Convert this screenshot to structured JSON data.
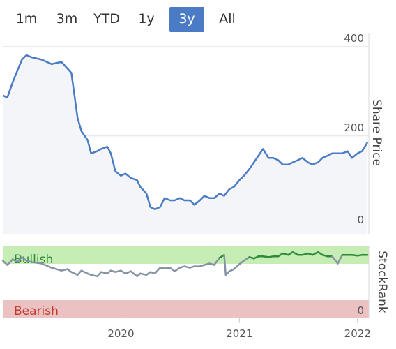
{
  "range_selector": {
    "buttons": [
      {
        "label": "1m",
        "active": false
      },
      {
        "label": "3m",
        "active": false
      },
      {
        "label": "YTD",
        "active": false
      },
      {
        "label": "1y",
        "active": false
      },
      {
        "label": "3y",
        "active": true
      },
      {
        "label": "All",
        "active": false
      }
    ]
  },
  "colors": {
    "price_line": "#4a7bc4",
    "price_fill": "#f3f5f9",
    "bullish_band": "#c6eeb4",
    "bearish_band": "#ebc1c1",
    "bullish_text": "#2e8b3a",
    "bearish_text": "#c0392b",
    "rank_line_grey": "#8592a3",
    "rank_line_green": "#2e8b3a",
    "active_button": "#4a7bc4"
  },
  "chart_data": [
    {
      "type": "line",
      "ylabel": "Share Price",
      "ylim": [
        -20,
        430
      ],
      "yticks": [
        "400",
        "200",
        "0"
      ],
      "x_ticks": [
        "2020",
        "2021",
        "2022"
      ],
      "x_range": [
        "2019-01",
        "2022-02"
      ],
      "series": [
        {
          "values": [
            [
              "2019-01",
              290
            ],
            [
              "2019-01-15",
              285
            ],
            [
              "2019-02",
              320
            ],
            [
              "2019-02-15",
              345
            ],
            [
              "2019-03",
              370
            ],
            [
              "2019-03-15",
              380
            ],
            [
              "2019-04",
              375
            ],
            [
              "2019-05",
              370
            ],
            [
              "2019-06",
              360
            ],
            [
              "2019-07",
              365
            ],
            [
              "2019-07-20",
              350
            ],
            [
              "2019-08",
              340
            ],
            [
              "2019-08-20",
              240
            ],
            [
              "2019-09",
              210
            ],
            [
              "2019-09-20",
              190
            ],
            [
              "2019-10",
              160
            ],
            [
              "2019-10-20",
              165
            ],
            [
              "2019-11",
              170
            ],
            [
              "2019-11-20",
              175
            ],
            [
              "2019-12",
              160
            ],
            [
              "2019-12-15",
              120
            ],
            [
              "2020-01",
              110
            ],
            [
              "2020-01-15",
              115
            ],
            [
              "2020-02",
              105
            ],
            [
              "2020-02-20",
              100
            ],
            [
              "2020-03",
              85
            ],
            [
              "2020-03-20",
              70
            ],
            [
              "2020-04",
              40
            ],
            [
              "2020-04-15",
              35
            ],
            [
              "2020-05",
              40
            ],
            [
              "2020-05-15",
              60
            ],
            [
              "2020-06",
              55
            ],
            [
              "2020-06-15",
              55
            ],
            [
              "2020-07",
              60
            ],
            [
              "2020-07-15",
              55
            ],
            [
              "2020-08",
              55
            ],
            [
              "2020-08-15",
              45
            ],
            [
              "2020-09",
              55
            ],
            [
              "2020-09-15",
              65
            ],
            [
              "2020-10",
              60
            ],
            [
              "2020-10-15",
              60
            ],
            [
              "2020-11",
              70
            ],
            [
              "2020-11-15",
              65
            ],
            [
              "2020-12",
              80
            ],
            [
              "2020-12-15",
              85
            ],
            [
              "2021-01",
              100
            ],
            [
              "2021-01-15",
              110
            ],
            [
              "2021-02",
              125
            ],
            [
              "2021-02-15",
              140
            ],
            [
              "2021-03",
              155
            ],
            [
              "2021-03-15",
              170
            ],
            [
              "2021-04",
              150
            ],
            [
              "2021-04-15",
              150
            ],
            [
              "2021-05",
              145
            ],
            [
              "2021-05-15",
              135
            ],
            [
              "2021-06",
              135
            ],
            [
              "2021-06-15",
              140
            ],
            [
              "2021-07",
              145
            ],
            [
              "2021-07-15",
              150
            ],
            [
              "2021-08",
              140
            ],
            [
              "2021-08-15",
              135
            ],
            [
              "2021-09",
              140
            ],
            [
              "2021-09-15",
              150
            ],
            [
              "2021-10",
              155
            ],
            [
              "2021-10-15",
              160
            ],
            [
              "2021-11",
              160
            ],
            [
              "2021-11-15",
              160
            ],
            [
              "2021-12",
              165
            ],
            [
              "2021-12-15",
              150
            ],
            [
              "2022-01",
              160
            ],
            [
              "2022-01-15",
              165
            ],
            [
              "2022-02",
              185
            ]
          ]
        }
      ]
    },
    {
      "type": "line",
      "ylabel": "StockRank",
      "yticks": [
        "0"
      ],
      "bands": [
        "Bullish",
        "Bearish"
      ],
      "ylim": [
        0,
        100
      ],
      "series": [
        {
          "values": [
            [
              "2019-01",
              80
            ],
            [
              "2019-01-15",
              74
            ],
            [
              "2019-02",
              82
            ],
            [
              "2019-02-15",
              78
            ],
            [
              "2019-03",
              85
            ],
            [
              "2019-03-15",
              80
            ],
            [
              "2019-04",
              78
            ],
            [
              "2019-05",
              76
            ],
            [
              "2019-06",
              70
            ],
            [
              "2019-07",
              66
            ],
            [
              "2019-07-20",
              68
            ],
            [
              "2019-08",
              64
            ],
            [
              "2019-08-20",
              60
            ],
            [
              "2019-09",
              66
            ],
            [
              "2019-09-20",
              62
            ],
            [
              "2019-10",
              60
            ],
            [
              "2019-10-20",
              58
            ],
            [
              "2019-11",
              64
            ],
            [
              "2019-11-20",
              62
            ],
            [
              "2019-12",
              66
            ],
            [
              "2019-12-15",
              64
            ],
            [
              "2020-01",
              66
            ],
            [
              "2020-01-15",
              62
            ],
            [
              "2020-02",
              65
            ],
            [
              "2020-02-20",
              58
            ],
            [
              "2020-03",
              62
            ],
            [
              "2020-03-20",
              60
            ],
            [
              "2020-04",
              64
            ],
            [
              "2020-04-15",
              62
            ],
            [
              "2020-05",
              70
            ],
            [
              "2020-05-15",
              69
            ],
            [
              "2020-06",
              70
            ],
            [
              "2020-06-15",
              65
            ],
            [
              "2020-07",
              70
            ],
            [
              "2020-07-15",
              72
            ],
            [
              "2020-08",
              70
            ],
            [
              "2020-08-15",
              72
            ],
            [
              "2020-09",
              72
            ],
            [
              "2020-09-15",
              74
            ],
            [
              "2020-10",
              76
            ],
            [
              "2020-10-15",
              74
            ],
            [
              "2020-11",
              84
            ],
            [
              "2020-11-15",
              88
            ],
            [
              "2020-11-20",
              60
            ],
            [
              "2020-12",
              65
            ],
            [
              "2020-12-15",
              68
            ],
            [
              "2021-01",
              75
            ],
            [
              "2021-01-15",
              80
            ],
            [
              "2021-02",
              85
            ],
            [
              "2021-02-15",
              83
            ],
            [
              "2021-03",
              86
            ],
            [
              "2021-03-15",
              86
            ],
            [
              "2021-04",
              85
            ],
            [
              "2021-04-15",
              86
            ],
            [
              "2021-05",
              86
            ],
            [
              "2021-05-15",
              90
            ],
            [
              "2021-06",
              88
            ],
            [
              "2021-06-15",
              92
            ],
            [
              "2021-07",
              88
            ],
            [
              "2021-07-15",
              88
            ],
            [
              "2021-08",
              90
            ],
            [
              "2021-08-15",
              88
            ],
            [
              "2021-09",
              92
            ],
            [
              "2021-09-15",
              88
            ],
            [
              "2021-10",
              86
            ],
            [
              "2021-10-15",
              86
            ],
            [
              "2021-11",
              76
            ],
            [
              "2021-11-15",
              88
            ],
            [
              "2021-12",
              88
            ],
            [
              "2021-12-15",
              88
            ],
            [
              "2022-01",
              87
            ],
            [
              "2022-01-15",
              88
            ],
            [
              "2022-02",
              88
            ]
          ]
        }
      ]
    }
  ]
}
